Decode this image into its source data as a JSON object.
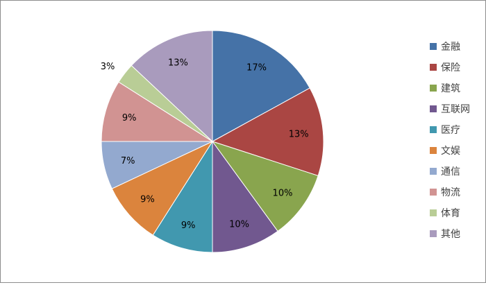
{
  "chart_data": {
    "type": "pie",
    "title": "",
    "start": "12 o'clock",
    "direction": "clockwise",
    "legend": "right",
    "slices": [
      {
        "label": "金融",
        "value": 17,
        "text": "17%",
        "color": "#4572A7"
      },
      {
        "label": "保险",
        "value": 13,
        "text": "13%",
        "color": "#AA4643"
      },
      {
        "label": "建筑",
        "value": 10,
        "text": "10%",
        "color": "#89A54E"
      },
      {
        "label": "互联网",
        "value": 10,
        "text": "10%",
        "color": "#71588F"
      },
      {
        "label": "医疗",
        "value": 9,
        "text": "9%",
        "color": "#4198AF"
      },
      {
        "label": "文娱",
        "value": 9,
        "text": "9%",
        "color": "#DB843D"
      },
      {
        "label": "通信",
        "value": 7,
        "text": "7%",
        "color": "#93A9CF"
      },
      {
        "label": "物流",
        "value": 9,
        "text": "9%",
        "color": "#D19392"
      },
      {
        "label": "体育",
        "value": 3,
        "text": "3%",
        "color": "#B9CD96"
      },
      {
        "label": "其他",
        "value": 13,
        "text": "13%",
        "color": "#A99BBD"
      }
    ]
  }
}
